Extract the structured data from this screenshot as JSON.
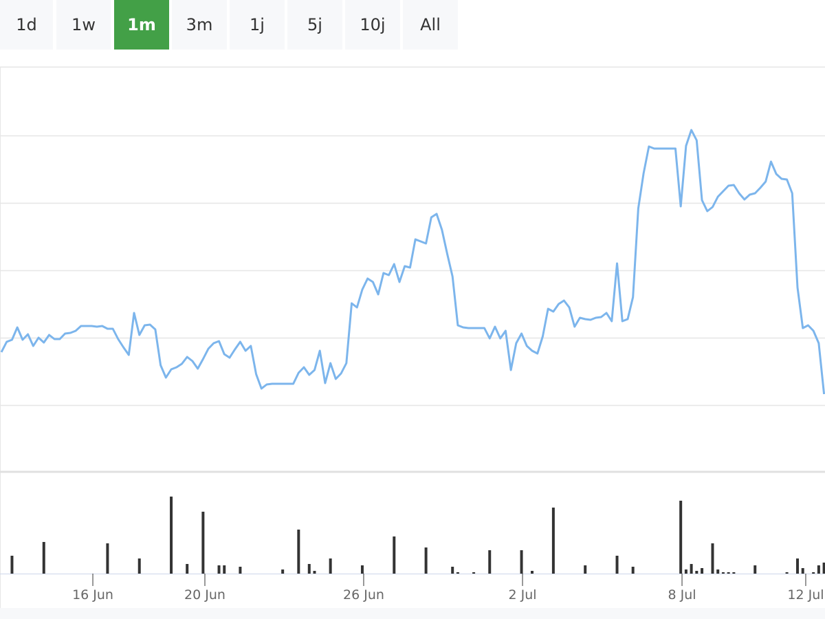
{
  "range_buttons": {
    "options": [
      "1d",
      "1w",
      "1m",
      "3m",
      "1j",
      "5j",
      "10j",
      "All"
    ],
    "selected_index": 2,
    "selected_color": "#43a047"
  },
  "chart_data": {
    "type": "line",
    "xlim": [
      -0.26,
      155.18
    ],
    "xticks": [
      {
        "value": 17.23,
        "label": "16 Jun"
      },
      {
        "value": 38.34,
        "label": "20 Jun"
      },
      {
        "value": 68.26,
        "label": "26 Jun"
      },
      {
        "value": 98.19,
        "label": "2 Jul"
      },
      {
        "value": 128.24,
        "label": "8 Jul"
      },
      {
        "value": 151.55,
        "label": "12 Jul"
      }
    ],
    "ylim": [
      0,
      590
    ],
    "yticks": [
      98,
      196,
      294,
      392,
      490,
      590
    ],
    "grid": true,
    "y2lim": [
      0,
      147
    ],
    "series": [
      {
        "color": "#7cb5ec",
        "values": [
          175,
          190,
          193,
          211,
          193,
          201,
          184,
          196,
          189,
          200,
          194,
          194,
          202,
          203,
          206,
          213,
          213,
          213,
          212,
          213,
          209,
          209,
          194,
          182,
          171,
          232,
          200,
          214,
          215,
          208,
          156,
          138,
          150,
          153,
          158,
          168,
          162,
          151,
          165,
          180,
          188,
          191,
          172,
          167,
          179,
          190,
          177,
          184,
          143,
          122,
          128,
          129,
          129,
          129,
          129,
          129,
          145,
          153,
          142,
          149,
          177,
          130,
          159,
          136,
          144,
          159,
          246,
          240,
          266,
          282,
          277,
          259,
          290,
          287,
          303,
          277,
          300,
          298,
          339,
          336,
          333,
          371,
          376,
          353,
          318,
          285,
          214,
          211,
          210,
          210,
          210,
          210,
          195,
          212,
          195,
          206,
          149,
          188,
          202,
          184,
          177,
          173,
          198,
          238,
          234,
          245,
          250,
          240,
          212,
          225,
          223,
          222,
          225,
          226,
          232,
          220,
          304,
          220,
          223,
          255,
          384,
          435,
          474,
          471,
          471,
          471,
          471,
          471,
          387,
          475,
          498,
          483,
          396,
          380,
          386,
          401,
          409,
          417,
          418,
          406,
          397,
          404,
          406,
          414,
          423,
          452,
          434,
          427,
          426,
          406,
          269,
          210,
          214,
          206,
          188,
          114
        ]
      },
      {
        "type": "bar",
        "axis": "y2",
        "color": "#333333",
        "values": [
          0,
          0,
          26,
          0,
          0,
          0,
          0,
          0,
          46,
          0,
          0,
          0,
          0,
          0,
          0,
          0,
          0,
          0,
          0,
          0,
          44,
          0,
          0,
          0,
          0,
          0,
          22,
          0,
          0,
          0,
          0,
          0,
          112,
          0,
          0,
          14,
          0,
          0,
          90,
          0,
          0,
          12,
          12,
          0,
          0,
          10,
          0,
          0,
          0,
          0,
          0,
          0,
          0,
          6,
          0,
          0,
          64,
          0,
          14,
          4,
          0,
          0,
          22,
          0,
          0,
          0,
          0,
          0,
          12,
          0,
          0,
          0,
          0,
          0,
          54,
          0,
          0,
          0,
          0,
          0,
          38,
          0,
          0,
          0,
          0,
          10,
          2,
          0,
          0,
          2,
          0,
          0,
          34,
          0,
          0,
          0,
          0,
          0,
          34,
          0,
          4,
          0,
          0,
          0,
          96,
          0,
          0,
          0,
          0,
          0,
          12,
          0,
          0,
          0,
          0,
          0,
          26,
          0,
          0,
          10,
          0,
          0,
          0,
          0,
          0,
          0,
          0,
          0,
          106,
          6,
          14,
          4,
          8,
          0,
          44,
          6,
          2,
          2,
          2,
          0,
          0,
          0,
          12,
          0,
          0,
          0,
          0,
          0,
          2,
          0,
          22,
          8,
          0,
          2,
          12,
          16
        ]
      }
    ]
  }
}
